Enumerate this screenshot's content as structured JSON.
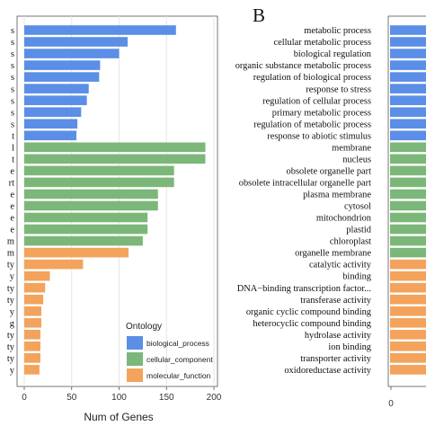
{
  "colors": {
    "biological_process": "#5b8ee6",
    "cellular_component": "#7cb77a",
    "molecular_function": "#f3a35c",
    "panel_bg": "#ffffff",
    "grid": "#e6e6e6",
    "frame": "#555555"
  },
  "panel_b_letter": "B",
  "chart_data": [
    {
      "type": "bar",
      "orientation": "horizontal",
      "xlabel": "Num of Genes",
      "xlim": [
        0,
        200
      ],
      "xticks": [
        0,
        50,
        100,
        150,
        200
      ],
      "xtick_labels": [
        "0",
        "50",
        "100",
        "150",
        "200"
      ],
      "grid": true,
      "legend": {
        "title": "Ontology",
        "placement": "bottom-right",
        "entries": [
          "biological_process",
          "cellular_component",
          "molecular_function"
        ]
      },
      "row_label_stubs": [
        "s",
        "s",
        "s",
        "s",
        "s",
        "s",
        "s",
        "s",
        "s",
        "t",
        "l",
        "t",
        "e",
        "rt",
        "e",
        "e",
        "e",
        "e",
        "m",
        "m",
        "ty",
        "y",
        "ty",
        "ty",
        "y",
        "g",
        "ty",
        "ty",
        "ty",
        "y"
      ],
      "ontology": [
        "biological_process",
        "biological_process",
        "biological_process",
        "biological_process",
        "biological_process",
        "biological_process",
        "biological_process",
        "biological_process",
        "biological_process",
        "biological_process",
        "cellular_component",
        "cellular_component",
        "cellular_component",
        "cellular_component",
        "cellular_component",
        "cellular_component",
        "cellular_component",
        "cellular_component",
        "cellular_component",
        "molecular_function",
        "molecular_function",
        "molecular_function",
        "molecular_function",
        "molecular_function",
        "molecular_function",
        "molecular_function",
        "molecular_function",
        "molecular_function",
        "molecular_function",
        "molecular_function"
      ],
      "values": [
        160,
        109,
        100,
        80,
        79,
        68,
        66,
        60,
        56,
        55,
        191,
        191,
        158,
        158,
        141,
        141,
        130,
        130,
        125,
        110,
        62,
        27,
        22,
        20,
        18,
        18,
        17,
        17,
        17,
        16
      ]
    },
    {
      "type": "bar",
      "orientation": "horizontal",
      "panel": "B",
      "xticks_visible": [
        "0"
      ],
      "categories": [
        "metabolic process",
        "cellular metabolic process",
        "biological regulation",
        "organic substance metabolic process",
        "regulation of biological process",
        "response to stress",
        "regulation of cellular process",
        "primary metabolic process",
        "regulation of metabolic process",
        "response to abiotic stimulus",
        "membrane",
        "nucleus",
        "obsolete organelle part",
        "obsolete intracellular organelle part",
        "plasma membrane",
        "cytosol",
        "mitochondrion",
        "plastid",
        "chloroplast",
        "organelle membrane",
        "catalytic activity",
        "binding",
        "DNA−binding transcription factor...",
        "transferase activity",
        "organic cyclic compound binding",
        "heterocyclic compound binding",
        "hydrolase activity",
        "ion binding",
        "transporter activity",
        "oxidoreductase activity"
      ],
      "ontology": [
        "biological_process",
        "biological_process",
        "biological_process",
        "biological_process",
        "biological_process",
        "biological_process",
        "biological_process",
        "biological_process",
        "biological_process",
        "biological_process",
        "cellular_component",
        "cellular_component",
        "cellular_component",
        "cellular_component",
        "cellular_component",
        "cellular_component",
        "cellular_component",
        "cellular_component",
        "cellular_component",
        "cellular_component",
        "molecular_function",
        "molecular_function",
        "molecular_function",
        "molecular_function",
        "molecular_function",
        "molecular_function",
        "molecular_function",
        "molecular_function",
        "molecular_function",
        "molecular_function"
      ]
    }
  ]
}
